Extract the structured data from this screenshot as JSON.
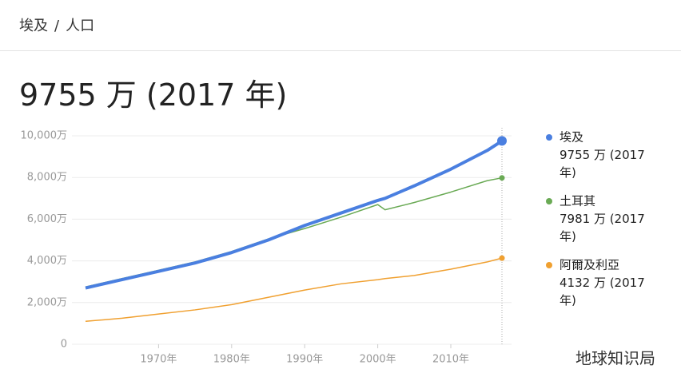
{
  "breadcrumb": [
    "埃及",
    "/",
    "人口"
  ],
  "headline": "9755 万 (2017 年)",
  "watermark": "地球知识局",
  "chart_data": {
    "type": "line",
    "x": [
      1960,
      1965,
      1970,
      1975,
      1980,
      1985,
      1990,
      1995,
      2000,
      2001,
      2005,
      2010,
      2015,
      2017
    ],
    "xlim": [
      1960,
      2017
    ],
    "xticks": [
      {
        "value": 1970,
        "label": "1970年"
      },
      {
        "value": 1980,
        "label": "1980年"
      },
      {
        "value": 1990,
        "label": "1990年"
      },
      {
        "value": 2000,
        "label": "2000年"
      },
      {
        "value": 2010,
        "label": "2010年"
      }
    ],
    "ylim": [
      0,
      10000
    ],
    "yticks": [
      0,
      {
        "value": 2000,
        "label": "2,000万"
      },
      {
        "value": 4000,
        "label": "4,000万"
      },
      {
        "value": 6000,
        "label": "6,000万"
      },
      {
        "value": 8000,
        "label": "8,000万"
      },
      {
        "value": 10000,
        "label": "10,000万"
      }
    ],
    "grid": true,
    "series": [
      {
        "name": "埃及",
        "legend_label": "9755 万 (2017 年)",
        "color": "#4a7fe0",
        "width": 4,
        "values": [
          2700,
          3100,
          3500,
          3900,
          4400,
          5000,
          5700,
          6300,
          6900,
          7000,
          7600,
          8400,
          9300,
          9755
        ]
      },
      {
        "name": "土耳其",
        "legend_label": "7981 万 (2017 年)",
        "color": "#6aaa55",
        "width": 1.5,
        "values": [
          2750,
          3150,
          3550,
          3950,
          4450,
          5050,
          5550,
          6100,
          6700,
          6450,
          6800,
          7300,
          7850,
          7981
        ]
      },
      {
        "name": "阿爾及利亞",
        "legend_label": "4132 万 (2017 年)",
        "color": "#f0a030",
        "width": 1.5,
        "values": [
          1100,
          1250,
          1450,
          1650,
          1900,
          2250,
          2600,
          2900,
          3100,
          3150,
          3300,
          3600,
          3950,
          4132
        ]
      }
    ]
  }
}
